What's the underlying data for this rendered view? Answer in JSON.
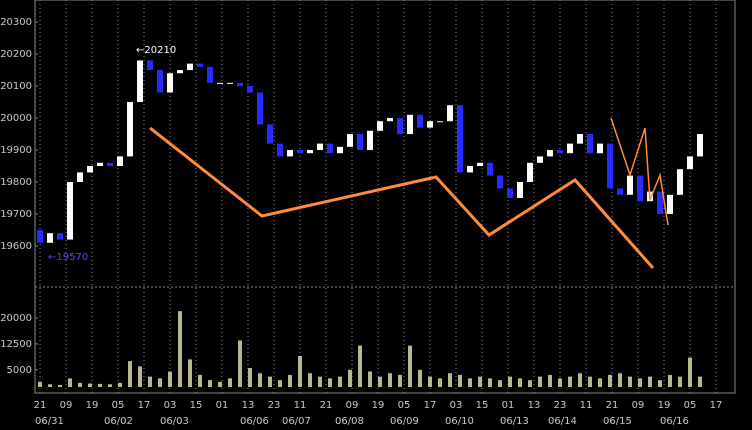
{
  "chart_data": {
    "type": "candlestick",
    "annotations": [
      "←20210",
      "←19570"
    ],
    "up_color": "#ffffff",
    "down_color": "#2a2aff",
    "volume_color": "#b8b890",
    "ylim": [
      19478,
      20369
    ],
    "yticks": [
      19600,
      19700,
      19800,
      19900,
      20000,
      20100,
      20200,
      20300
    ],
    "volume_ylim": [
      0,
      29000
    ],
    "volume_yticks": [
      5000,
      12500,
      20000
    ],
    "xticks": [
      "21",
      "09",
      "19",
      "05",
      "17",
      "03",
      "15",
      "01",
      "13",
      "23",
      "11",
      "21",
      "09",
      "19",
      "05",
      "17",
      "03",
      "15",
      "01",
      "13",
      "23",
      "11",
      "21",
      "09",
      "19",
      "05",
      "17"
    ],
    "date_labels": [
      "06/31",
      "06/02",
      "06/03",
      "06/06",
      "06/07",
      "06/08",
      "06/09",
      "06/10",
      "06/13",
      "06/14",
      "06/15",
      "06/16"
    ],
    "open": [
      19650,
      19610,
      19640,
      19620,
      19800,
      19830,
      19850,
      19860,
      19850,
      19880,
      20050,
      20180,
      20150,
      20080,
      20140,
      20150,
      20170,
      20160,
      20110,
      20110,
      20110,
      20100,
      20080,
      19980,
      19920,
      19880,
      19900,
      19890,
      19900,
      19920,
      19890,
      19910,
      19950,
      19900,
      19960,
      19990,
      20000,
      19950,
      20010,
      19970,
      19990,
      19990,
      20040,
      19830,
      19850,
      19860,
      19820,
      19780,
      19750,
      19800,
      19860,
      19880,
      19900,
      19890,
      19920,
      19950,
      19890,
      19920,
      19780,
      19760,
      19820,
      19740,
      19770,
      19700,
      19760,
      19840,
      19880
    ],
    "close": [
      19610,
      19640,
      19620,
      19800,
      19830,
      19850,
      19860,
      19850,
      19880,
      20050,
      20180,
      20150,
      20080,
      20140,
      20150,
      20170,
      20160,
      20110,
      20110,
      20110,
      20100,
      20080,
      19980,
      19920,
      19880,
      19900,
      19890,
      19900,
      19920,
      19890,
      19910,
      19950,
      19900,
      19960,
      19990,
      20000,
      19950,
      20010,
      19970,
      19990,
      19990,
      20040,
      19830,
      19850,
      19860,
      19820,
      19780,
      19750,
      19800,
      19860,
      19880,
      19900,
      19890,
      19920,
      19950,
      19890,
      19920,
      19780,
      19760,
      19820,
      19740,
      19770,
      19700,
      19760,
      19840,
      19880,
      19950
    ],
    "volume": [
      1500,
      800,
      600,
      2500,
      1200,
      1000,
      900,
      800,
      1200,
      7500,
      6000,
      3000,
      2500,
      4500,
      22000,
      8000,
      3500,
      2000,
      1500,
      2500,
      13500,
      5500,
      4000,
      3000,
      2000,
      3500,
      9000,
      4000,
      3000,
      2500,
      3000,
      5000,
      12000,
      4500,
      3000,
      4000,
      3500,
      12000,
      5000,
      3000,
      2500,
      4000,
      3500,
      2500,
      3000,
      2500,
      2000,
      3000,
      2500,
      2000,
      3000,
      3500,
      2500,
      3000,
      4000,
      3000,
      2500,
      3500,
      4000,
      3000,
      2500,
      3000,
      2000,
      3500,
      3000,
      8500,
      3000
    ]
  }
}
